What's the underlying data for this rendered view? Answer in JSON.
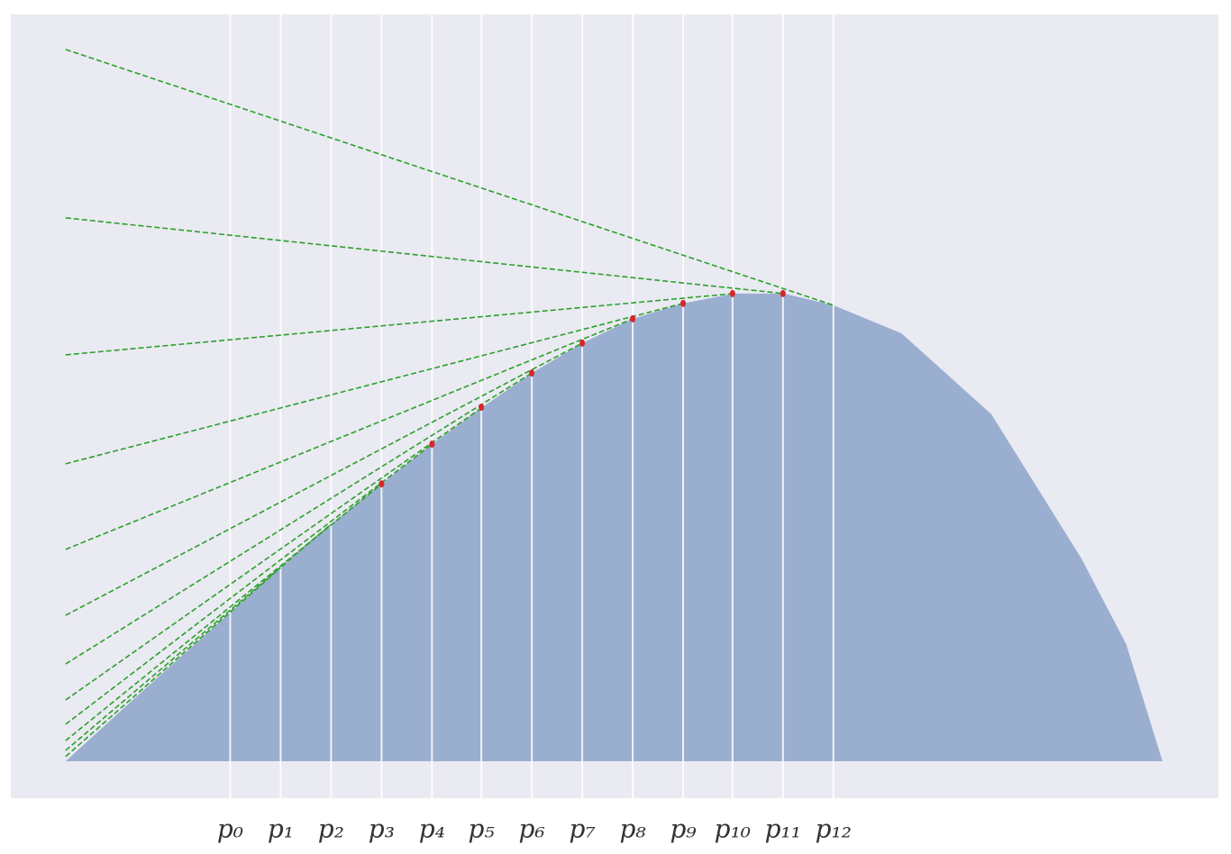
{
  "chart_data": {
    "type": "area",
    "x": [
      0,
      0.063,
      0.15,
      0.196,
      0.242,
      0.288,
      0.334,
      0.38,
      0.425,
      0.471,
      0.517,
      0.563,
      0.609,
      0.655,
      0.7,
      0.762,
      0.844,
      0.926,
      0.967,
      1.0
    ],
    "values": [
      0,
      0.135,
      0.318,
      0.414,
      0.507,
      0.593,
      0.678,
      0.757,
      0.83,
      0.894,
      0.946,
      0.979,
      1.0,
      1.0,
      0.975,
      0.915,
      0.742,
      0.434,
      0.25,
      0
    ],
    "color": "#9aaed0",
    "xlim": [
      -0.05,
      1.051
    ],
    "ylim": [
      -0.079,
      1.597
    ],
    "xticks": [
      {
        "value": 0.15,
        "label": "p₀"
      },
      {
        "value": 0.196,
        "label": "p₁"
      },
      {
        "value": 0.242,
        "label": "p₂"
      },
      {
        "value": 0.288,
        "label": "p₃"
      },
      {
        "value": 0.334,
        "label": "p₄"
      },
      {
        "value": 0.379,
        "label": "p₅"
      },
      {
        "value": 0.425,
        "label": "p₆"
      },
      {
        "value": 0.471,
        "label": "p₇"
      },
      {
        "value": 0.517,
        "label": "p₈"
      },
      {
        "value": 0.563,
        "label": "p₉"
      },
      {
        "value": 0.608,
        "label": "p₁₀"
      },
      {
        "value": 0.654,
        "label": "p₁₁"
      },
      {
        "value": 0.7,
        "label": "p₁₂"
      }
    ],
    "grid": true,
    "line_color": "#2ca02c",
    "lines": [
      {
        "x": [
          0,
          0.7
        ],
        "y": [
          1.522,
          0.975
        ]
      },
      {
        "x": [
          0,
          0.655
        ],
        "y": [
          1.162,
          1.0
        ]
      },
      {
        "x": [
          0,
          0.609
        ],
        "y": [
          0.869,
          1.0
        ]
      },
      {
        "x": [
          0,
          0.563
        ],
        "y": [
          0.636,
          0.979
        ]
      },
      {
        "x": [
          0,
          0.517
        ],
        "y": [
          0.453,
          0.946
        ]
      },
      {
        "x": [
          0,
          0.471
        ],
        "y": [
          0.312,
          0.894
        ]
      },
      {
        "x": [
          0,
          0.425
        ],
        "y": [
          0.208,
          0.83
        ]
      },
      {
        "x": [
          0,
          0.38
        ],
        "y": [
          0.131,
          0.757
        ]
      },
      {
        "x": [
          0,
          0.334
        ],
        "y": [
          0.079,
          0.678
        ]
      },
      {
        "x": [
          0,
          0.288
        ],
        "y": [
          0.044,
          0.593
        ]
      },
      {
        "x": [
          0,
          0.242
        ],
        "y": [
          0.023,
          0.507
        ]
      },
      {
        "x": [
          0,
          0.196
        ],
        "y": [
          0.01,
          0.414
        ]
      }
    ],
    "points": {
      "color": "#d62728",
      "x": [
        0.288,
        0.334,
        0.379,
        0.425,
        0.471,
        0.517,
        0.563,
        0.608,
        0.654
      ],
      "y": [
        0.593,
        0.678,
        0.757,
        0.83,
        0.894,
        0.946,
        0.979,
        1.0,
        1.0
      ]
    }
  }
}
